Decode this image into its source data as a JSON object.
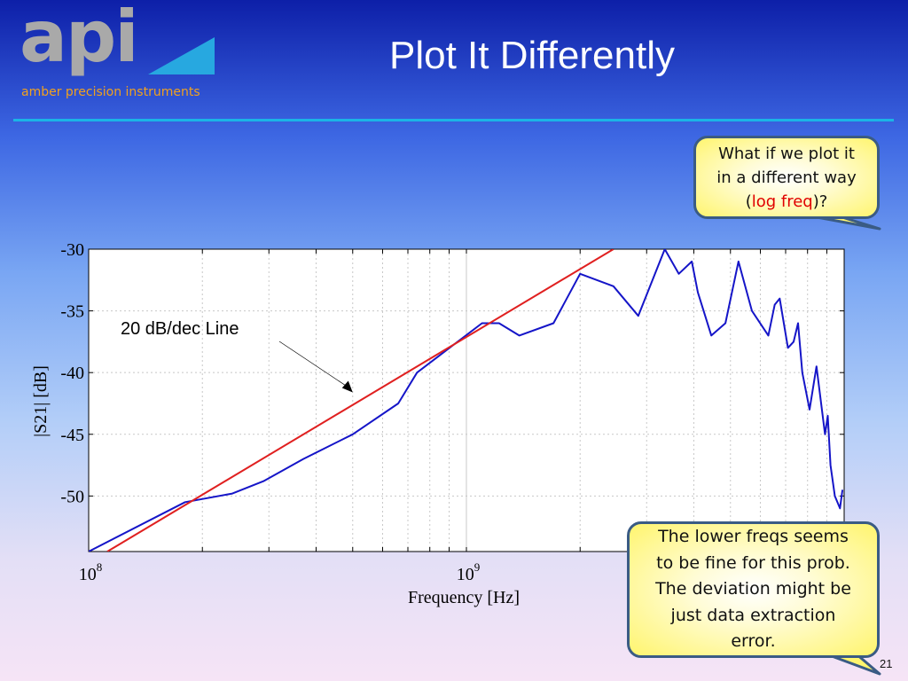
{
  "slide": {
    "title": "Plot It Differently",
    "page_number": "21",
    "logo": {
      "wordmark": "api",
      "tagline": "amber precision instruments",
      "icon": "blue-triangle-icon"
    },
    "colors": {
      "accent_line": "#1bb4e6",
      "callout_border": "#3a5b84",
      "callout_fill": "#fff56e",
      "highlight": "#e00000"
    }
  },
  "callouts": {
    "top": {
      "line1": "What if we plot it",
      "line2": "in a different way",
      "paren_open": "(",
      "highlight": "log freq",
      "paren_close": ")?"
    },
    "bottom": {
      "line1": "The lower freqs seems",
      "line2": "to be fine for this prob.",
      "line3": "The deviation might be",
      "line4": "just data extraction",
      "line5": "error."
    }
  },
  "chart_data": {
    "type": "line",
    "xlabel": "Frequency [Hz]",
    "ylabel": "|S21| [dB]",
    "x_scale": "log",
    "xlim": [
      100000000,
      10000000000
    ],
    "ylim": [
      -54.5,
      -30
    ],
    "x_tick_labels": [
      {
        "base": "10",
        "exp": "8"
      },
      {
        "base": "10",
        "exp": "9"
      }
    ],
    "y_ticks": [
      -30,
      -35,
      -40,
      -45,
      -50
    ],
    "grid": true,
    "annotations": [
      {
        "text": "20 dB/dec Line",
        "points_to": [
          500000000,
          -41.6
        ]
      }
    ],
    "series": [
      {
        "color": "#1515c8",
        "x": [
          100000000,
          180000000,
          240000000,
          290000000,
          370000000,
          500000000,
          660000000,
          740000000,
          1100000000,
          1220000000,
          1380000000,
          1700000000,
          2000000000,
          2450000000,
          2850000000,
          3350000000,
          3650000000,
          3950000000,
          4100000000,
          4450000000,
          4850000000,
          5250000000,
          5700000000,
          6300000000,
          6550000000,
          6750000000,
          7100000000,
          7350000000,
          7550000000,
          7750000000,
          8100000000,
          8450000000,
          8900000000,
          9050000000,
          9200000000,
          9450000000,
          9750000000,
          9900000000
        ],
        "y": [
          -54.5,
          -50.5,
          -49.8,
          -48.8,
          -47,
          -45,
          -42.5,
          -40,
          -36,
          -36,
          -37,
          -36,
          -32,
          -33,
          -35.4,
          -30,
          -32,
          -31,
          -33.5,
          -37,
          -36,
          -31,
          -35,
          -37,
          -34.5,
          -34,
          -38,
          -37.5,
          -36,
          -40,
          -43,
          -39.5,
          -45,
          -43.5,
          -47.5,
          -50,
          -51,
          -49.5
        ]
      },
      {
        "color": "#e02020",
        "x": [
          112000000,
          2450000000
        ],
        "y": [
          -54.5,
          -30
        ]
      }
    ]
  }
}
